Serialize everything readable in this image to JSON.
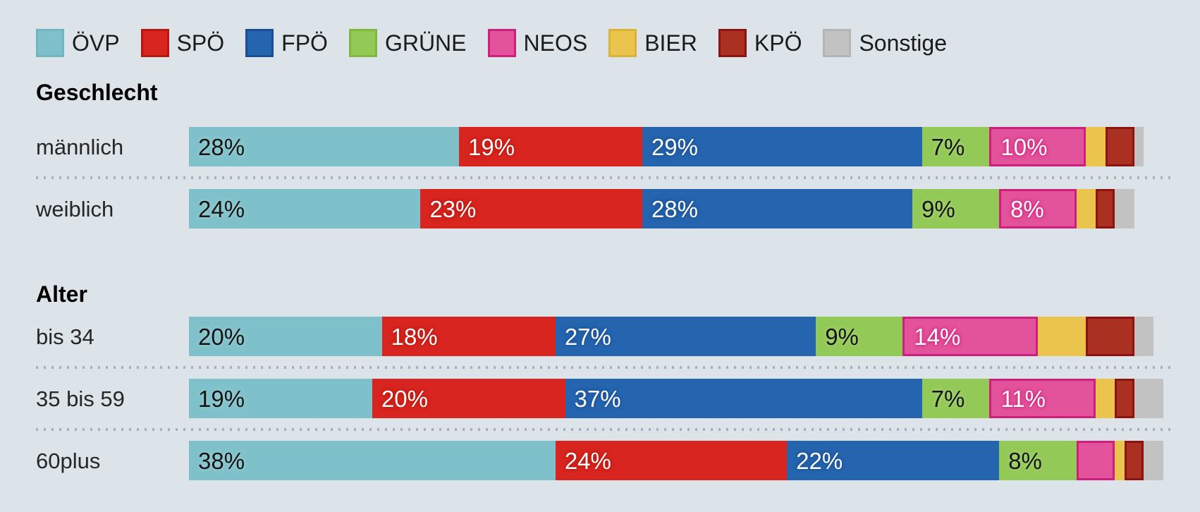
{
  "legend_note": "party legend for stacked bars",
  "accent_background": "#dce3e9",
  "separator_color": "#a9b1b8",
  "chart_data": {
    "type": "bar",
    "orientation": "horizontal",
    "stacked": true,
    "unit": "%",
    "grid": false,
    "legend_position": "top",
    "label_threshold": 7,
    "categories": [
      "männlich",
      "weiblich",
      "bis 34",
      "35 bis 59",
      "60plus"
    ],
    "groups": [
      {
        "title": "Geschlecht",
        "categories": [
          "männlich",
          "weiblich"
        ]
      },
      {
        "title": "Alter",
        "categories": [
          "bis 34",
          "35 bis 59",
          "60plus"
        ]
      }
    ],
    "series": [
      {
        "name": "ÖVP",
        "color": "#7fc1ca",
        "border": "#6fb6c2",
        "text": "dark",
        "bordered_segment": false,
        "values": [
          28,
          24,
          20,
          19,
          38
        ]
      },
      {
        "name": "SPÖ",
        "color": "#d8251f",
        "border": "#b5180f",
        "text": "light",
        "bordered_segment": false,
        "values": [
          19,
          23,
          18,
          20,
          24
        ]
      },
      {
        "name": "FPÖ",
        "color": "#2565af",
        "border": "#1b4e90",
        "text": "light",
        "bordered_segment": false,
        "values": [
          29,
          28,
          27,
          37,
          22
        ]
      },
      {
        "name": "GRÜNE",
        "color": "#93c956",
        "border": "#7eb83e",
        "text": "dark",
        "bordered_segment": false,
        "values": [
          7,
          9,
          9,
          7,
          8
        ]
      },
      {
        "name": "NEOS",
        "color": "#e3539b",
        "border": "#ce1f7c",
        "text": "light",
        "bordered_segment": true,
        "values": [
          10,
          8,
          14,
          11,
          4
        ]
      },
      {
        "name": "BIER",
        "color": "#eac44d",
        "border": "#dcb234",
        "text": "dark",
        "bordered_segment": false,
        "values": [
          2,
          2,
          5,
          2,
          1
        ]
      },
      {
        "name": "KPÖ",
        "color": "#aa3122",
        "border": "#8c130e",
        "text": "light",
        "bordered_segment": true,
        "values": [
          3,
          2,
          5,
          2,
          2
        ]
      },
      {
        "name": "Sonstige",
        "color": "#c2c2c3",
        "border": "#b4b4b5",
        "text": "dark",
        "bordered_segment": false,
        "values": [
          1,
          2,
          2,
          3,
          2
        ]
      }
    ]
  }
}
